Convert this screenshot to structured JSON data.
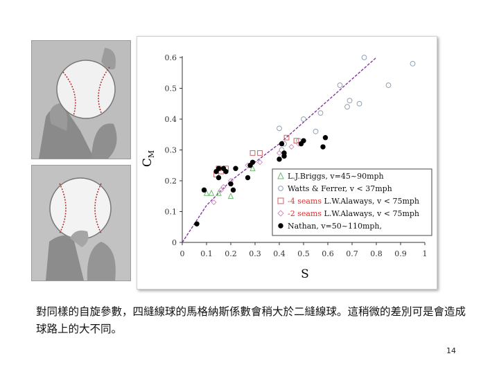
{
  "caption": "對同樣的自旋參數，四縫線球的馬格納斯係數會稍大於二縫線球。這稍微的差別可是會造成球路上的大不同。",
  "page_number": "14",
  "photos": [
    {
      "icon": "baseball-four-seam-grip-photo"
    },
    {
      "icon": "baseball-two-seam-grip-photo"
    }
  ],
  "chart_data": {
    "type": "scatter",
    "title": "",
    "xlabel": "S",
    "ylabel_main": "C",
    "ylabel_sub": "M",
    "xlim": [
      0,
      1
    ],
    "ylim": [
      0,
      0.6
    ],
    "x_ticks": [
      "0",
      "0.1",
      "0.2",
      "0.3",
      "0.4",
      "0.5",
      "0.6",
      "0.7",
      "0.8",
      "0.9",
      "1"
    ],
    "y_ticks": [
      "0",
      "0.1",
      "0.2",
      "0.3",
      "0.4",
      "0.5",
      "0.6"
    ],
    "grid": false,
    "legend_position": "bottom-right",
    "legend_highlight_color": "#e03030",
    "series": [
      {
        "name": "L.J.Briggs, v=45~90mph",
        "legend_prefix": "",
        "legend_rest": "L.J.Briggs, v=45~90mph",
        "marker": "triangle",
        "color": "#6fb86f",
        "filled": false,
        "points": [
          [
            0.1,
            0.16
          ],
          [
            0.12,
            0.16
          ],
          [
            0.15,
            0.16
          ],
          [
            0.2,
            0.15
          ],
          [
            0.29,
            0.24
          ]
        ]
      },
      {
        "name": "Watts & Ferrer, v < 37mph",
        "legend_prefix": "",
        "legend_rest": "Watts & Ferrer, v < 37mph",
        "marker": "circle",
        "color": "#8fa0b0",
        "filled": false,
        "points": [
          [
            0.4,
            0.37
          ],
          [
            0.41,
            0.3
          ],
          [
            0.5,
            0.4
          ],
          [
            0.55,
            0.36
          ],
          [
            0.57,
            0.42
          ],
          [
            0.65,
            0.51
          ],
          [
            0.68,
            0.44
          ],
          [
            0.69,
            0.46
          ],
          [
            0.73,
            0.45
          ],
          [
            0.75,
            0.6
          ],
          [
            0.85,
            0.51
          ],
          [
            0.95,
            0.58
          ],
          [
            0.42,
            0.32
          ],
          [
            0.48,
            0.33
          ]
        ]
      },
      {
        "name": "-4 seams L.W.Alaways, v < 75mph",
        "legend_prefix": "-4 seams",
        "legend_rest": " L.W.Alaways, v < 75mph",
        "marker": "square",
        "color": "#d06060",
        "filled": false,
        "points": [
          [
            0.15,
            0.24
          ],
          [
            0.16,
            0.23
          ],
          [
            0.18,
            0.24
          ],
          [
            0.29,
            0.29
          ],
          [
            0.32,
            0.29
          ],
          [
            0.43,
            0.34
          ],
          [
            0.47,
            0.33
          ],
          [
            0.14,
            0.22
          ]
        ]
      },
      {
        "name": "-2 seams L.W.Alaways, v < 75mph",
        "legend_prefix": "-2 seams",
        "legend_rest": " L.W.Alaways, v < 75mph",
        "marker": "diamond",
        "color": "#d090c0",
        "filled": false,
        "points": [
          [
            0.13,
            0.13
          ],
          [
            0.16,
            0.17
          ],
          [
            0.17,
            0.18
          ],
          [
            0.2,
            0.2
          ],
          [
            0.27,
            0.25
          ],
          [
            0.32,
            0.26
          ],
          [
            0.4,
            0.29
          ],
          [
            0.45,
            0.31
          ],
          [
            0.48,
            0.32
          ]
        ]
      },
      {
        "name": "Nathan, v=50~110mph,",
        "legend_prefix": "",
        "legend_rest": "Nathan, v=50~110mph,",
        "marker": "circle",
        "color": "#000000",
        "filled": true,
        "points": [
          [
            0.06,
            0.06
          ],
          [
            0.09,
            0.17
          ],
          [
            0.14,
            0.23
          ],
          [
            0.15,
            0.21
          ],
          [
            0.15,
            0.24
          ],
          [
            0.17,
            0.24
          ],
          [
            0.18,
            0.23
          ],
          [
            0.2,
            0.19
          ],
          [
            0.21,
            0.17
          ],
          [
            0.22,
            0.24
          ],
          [
            0.27,
            0.21
          ],
          [
            0.28,
            0.25
          ],
          [
            0.29,
            0.26
          ],
          [
            0.4,
            0.27
          ],
          [
            0.41,
            0.32
          ],
          [
            0.42,
            0.28
          ],
          [
            0.42,
            0.29
          ],
          [
            0.49,
            0.32
          ],
          [
            0.5,
            0.33
          ],
          [
            0.58,
            0.31
          ],
          [
            0.59,
            0.34
          ]
        ]
      }
    ],
    "trend_line": {
      "style": "dashed",
      "color": "#7a2a9a",
      "points": [
        [
          0,
          0
        ],
        [
          0.1,
          0.12
        ],
        [
          0.2,
          0.2
        ],
        [
          0.3,
          0.26
        ],
        [
          0.4,
          0.32
        ],
        [
          0.5,
          0.39
        ],
        [
          0.6,
          0.46
        ],
        [
          0.7,
          0.53
        ],
        [
          0.8,
          0.6
        ]
      ]
    }
  }
}
